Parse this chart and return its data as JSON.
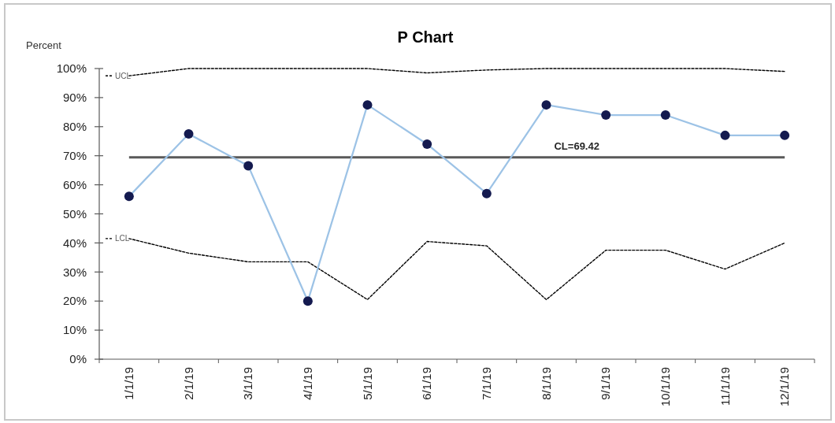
{
  "chart_data": {
    "type": "line",
    "title": "P Chart",
    "ylabel": "Percent",
    "legend": "left",
    "categories": [
      "1/1/19",
      "2/1/19",
      "3/1/19",
      "4/1/19",
      "5/1/19",
      "6/1/19",
      "7/1/19",
      "8/1/19",
      "9/1/19",
      "10/1/19",
      "11/1/19",
      "12/1/19"
    ],
    "ylim": [
      0,
      100
    ],
    "yticks": [
      {
        "value": 0,
        "label": "0%"
      },
      {
        "value": 10,
        "label": "10%"
      },
      {
        "value": 20,
        "label": "20%"
      },
      {
        "value": 30,
        "label": "30%"
      },
      {
        "value": 40,
        "label": "40%"
      },
      {
        "value": 50,
        "label": "50%"
      },
      {
        "value": 60,
        "label": "60%"
      },
      {
        "value": 70,
        "label": "70%"
      },
      {
        "value": 80,
        "label": "80%"
      },
      {
        "value": 90,
        "label": "90%"
      },
      {
        "value": 100,
        "label": "100%"
      }
    ],
    "series": [
      {
        "color": "#9dc3e6",
        "colors": [
          "#141a4f",
          "#141a4f",
          "#141a4f",
          "#141a4f",
          "#141a4f",
          "#141a4f",
          "#141a4f",
          "#141a4f",
          "#141a4f",
          "#141a4f",
          "#141a4f",
          "#141a4f"
        ],
        "marker": "circle",
        "values": [
          56,
          77.5,
          66.5,
          20,
          87.5,
          74,
          57,
          87.5,
          84,
          84,
          77,
          77
        ]
      },
      {
        "name": "UCL",
        "color": "#000000",
        "line_style": "dashed",
        "values": [
          97.5,
          100,
          100,
          100,
          100,
          98.5,
          99.5,
          100,
          100,
          100,
          100,
          99
        ]
      },
      {
        "name": "LCL",
        "color": "#000000",
        "line_style": "dashed",
        "values": [
          41.5,
          36.5,
          33.5,
          33.5,
          20.5,
          40.5,
          39,
          20.5,
          37.5,
          37.5,
          31,
          40
        ]
      }
    ],
    "ref_lines": [
      {
        "axis": "y",
        "value": 69.42,
        "label": "CL=69.42",
        "color": "#595959"
      }
    ]
  }
}
